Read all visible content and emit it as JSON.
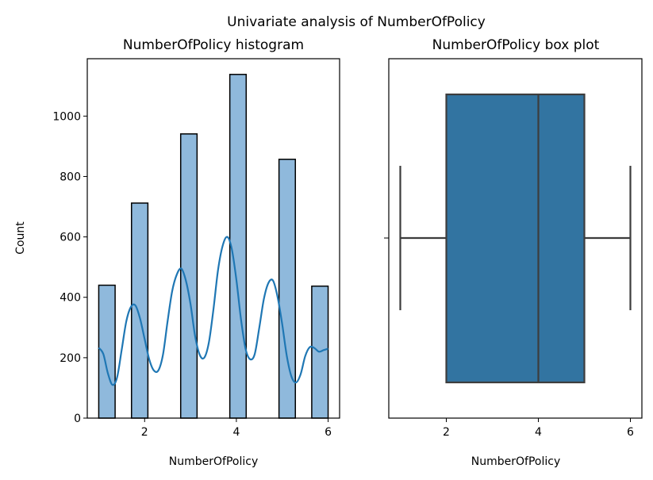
{
  "suptitle": "Univariate analysis of NumberOfPolicy",
  "chart_data": [
    {
      "type": "bar",
      "subtype": "histogram",
      "title": "NumberOfPolicy histogram",
      "xlabel": "NumberOfPolicy",
      "ylabel": "Count",
      "xlim": [
        0.75,
        6.25
      ],
      "ylim": [
        0,
        1190
      ],
      "xticks": [
        2,
        4,
        6
      ],
      "yticks": [
        0,
        200,
        400,
        600,
        800,
        1000
      ],
      "bar_color": "#8fb9dc",
      "edge_color": "#000000",
      "line_color": "#1f77b4",
      "bins": [
        {
          "x0": 1.0,
          "x1": 1.357,
          "count": 440
        },
        {
          "x0": 1.714,
          "x1": 2.071,
          "count": 712
        },
        {
          "x0": 2.786,
          "x1": 3.143,
          "count": 941
        },
        {
          "x0": 3.857,
          "x1": 4.214,
          "count": 1138
        },
        {
          "x0": 4.929,
          "x1": 5.286,
          "count": 857
        },
        {
          "x0": 5.643,
          "x1": 6.0,
          "count": 437
        }
      ],
      "kde": {
        "x": [
          1.0,
          1.1,
          1.2,
          1.3,
          1.4,
          1.5,
          1.6,
          1.7,
          1.8,
          1.9,
          2.0,
          2.1,
          2.2,
          2.3,
          2.4,
          2.5,
          2.6,
          2.7,
          2.8,
          2.9,
          3.0,
          3.1,
          3.2,
          3.3,
          3.4,
          3.5,
          3.6,
          3.7,
          3.8,
          3.9,
          4.0,
          4.1,
          4.2,
          4.3,
          4.4,
          4.5,
          4.6,
          4.7,
          4.8,
          4.9,
          5.0,
          5.1,
          5.2,
          5.3,
          5.4,
          5.5,
          5.6,
          5.7,
          5.8,
          5.9,
          6.0
        ],
        "y": [
          233,
          212,
          148,
          110,
          135,
          226,
          320,
          368,
          373,
          330,
          262,
          195,
          158,
          158,
          210,
          320,
          420,
          475,
          495,
          455,
          378,
          272,
          210,
          200,
          250,
          360,
          490,
          570,
          600,
          560,
          458,
          328,
          230,
          195,
          212,
          300,
          395,
          448,
          455,
          400,
          310,
          205,
          138,
          118,
          145,
          205,
          235,
          232,
          220,
          225,
          230
        ]
      }
    },
    {
      "type": "box",
      "title": "NumberOfPolicy box plot",
      "xlabel": "NumberOfPolicy",
      "xlim": [
        0.75,
        6.25
      ],
      "xticks": [
        2,
        4,
        6
      ],
      "box_color": "#3274a1",
      "line_color": "#3d3d3d",
      "min": 1,
      "q1": 2,
      "median": 4,
      "q3": 5,
      "max": 6
    }
  ]
}
